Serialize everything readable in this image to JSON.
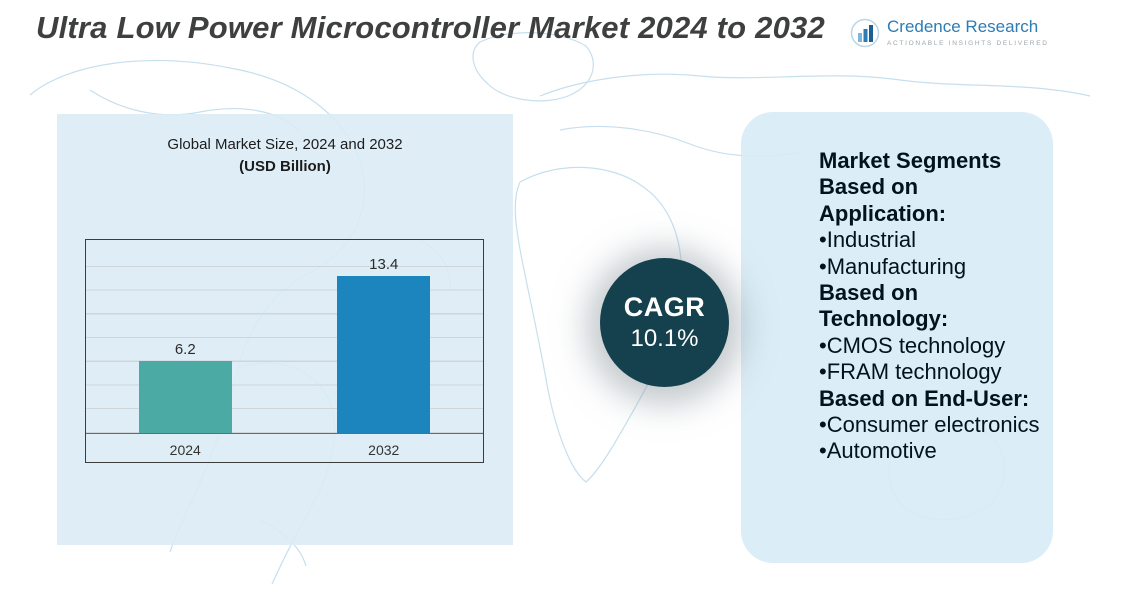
{
  "title": "Ultra Low Power Microcontroller Market 2024 to 2032",
  "logo": {
    "name": "Credence Research",
    "tagline": "Actionable Insights Delivered"
  },
  "chart_panel": {
    "title_line1": "Global Market Size, 2024 and 2032",
    "title_line2": "(USD Billion)"
  },
  "chart_data": {
    "type": "bar",
    "title": "Global Market Size, 2024 and 2032 (USD Billion)",
    "categories": [
      "2024",
      "2032"
    ],
    "values": [
      6.2,
      13.4
    ],
    "xlabel": "",
    "ylabel": "",
    "ylim": [
      0,
      16
    ],
    "grid": true,
    "legend": "none",
    "bar_colors": [
      "#4caaa5",
      "#1c85bd"
    ]
  },
  "cagr": {
    "label": "CAGR",
    "value": "10.1%"
  },
  "segments_panel": {
    "sections": [
      {
        "header": "Market Segments Based on Application:",
        "items": [
          "Industrial",
          "Manufacturing"
        ]
      },
      {
        "header": "Based on Technology:",
        "items": [
          "CMOS technology",
          "FRAM technology"
        ]
      },
      {
        "header": "Based on End-User:",
        "items": [
          "Consumer electronics",
          "Automotive"
        ]
      }
    ]
  },
  "colors": {
    "bar_2024": "#4caaa5",
    "bar_2032": "#1c85bd",
    "cagr_circle": "#15404d",
    "panel_bg": "#d8ebf6",
    "logo_blue": "#2d7cb5",
    "title_text": "#3e3f3f"
  }
}
